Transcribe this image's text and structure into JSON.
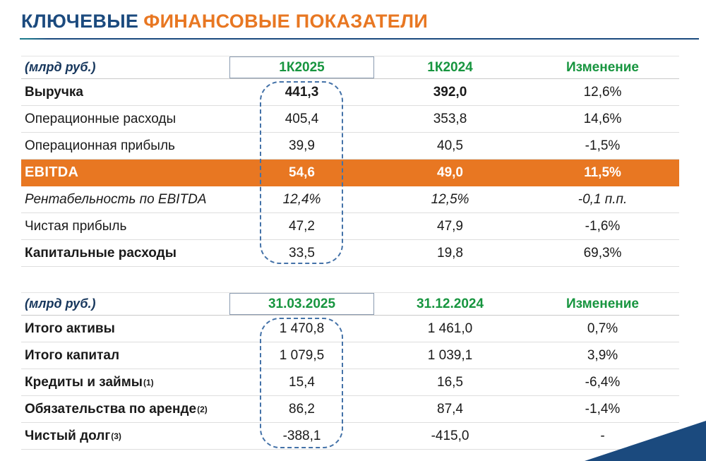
{
  "title": {
    "word1": "КЛЮЧЕВЫЕ",
    "word2": "ФИНАНСОВЫЕ ПОКАЗАТЕЛИ"
  },
  "colors": {
    "navy": "#1B4A7E",
    "orange": "#E87722",
    "green": "#17953F",
    "dash": "#4472A8",
    "teal": "#1D7A8C"
  },
  "table1": {
    "unit_label": "(млрд руб.)",
    "columns": [
      "1К2025",
      "1К2024",
      "Изменение"
    ],
    "rows": [
      {
        "label": "Выручка",
        "v1": "441,3",
        "v2": "392,0",
        "chg": "12,6%",
        "style": "bold"
      },
      {
        "label": "Операционные расходы",
        "v1": "405,4",
        "v2": "353,8",
        "chg": "14,6%",
        "style": ""
      },
      {
        "label": "Операционная прибыль",
        "v1": "39,9",
        "v2": "40,5",
        "chg": "-1,5%",
        "style": ""
      },
      {
        "label": "EBITDA",
        "v1": "54,6",
        "v2": "49,0",
        "chg": "11,5%",
        "style": "highlight"
      },
      {
        "label": "Рентабельность по EBITDA",
        "v1": "12,4%",
        "v2": "12,5%",
        "chg": "-0,1 п.п.",
        "style": "italic"
      },
      {
        "label": "Чистая прибыль",
        "v1": "47,2",
        "v2": "47,9",
        "chg": "-1,6%",
        "style": ""
      },
      {
        "label": "Капитальные расходы",
        "v1": "33,5",
        "v2": "19,8",
        "chg": "69,3%",
        "style": "bold-label"
      }
    ]
  },
  "table2": {
    "unit_label": "(млрд руб.)",
    "columns": [
      "31.03.2025",
      "31.12.2024",
      "Изменение"
    ],
    "rows": [
      {
        "label": "Итого активы",
        "v1": "1 470,8",
        "v2": "1 461,0",
        "chg": "0,7%",
        "style": "bold-label"
      },
      {
        "label": "Итого капитал",
        "v1": "1 079,5",
        "v2": "1 039,1",
        "chg": "3,9%",
        "style": "bold-label"
      },
      {
        "label": "Кредиты и займы",
        "sup": "(1)",
        "v1": "15,4",
        "v2": "16,5",
        "chg": "-6,4%",
        "style": "bold-label"
      },
      {
        "label": "Обязательства по аренде",
        "sup": "(2)",
        "v1": "86,2",
        "v2": "87,4",
        "chg": "-1,4%",
        "style": "bold-label"
      },
      {
        "label": "Чистый долг",
        "sup": "(3)",
        "v1": "-388,1",
        "v2": "-415,0",
        "chg": "-",
        "style": "bold-label"
      }
    ]
  }
}
